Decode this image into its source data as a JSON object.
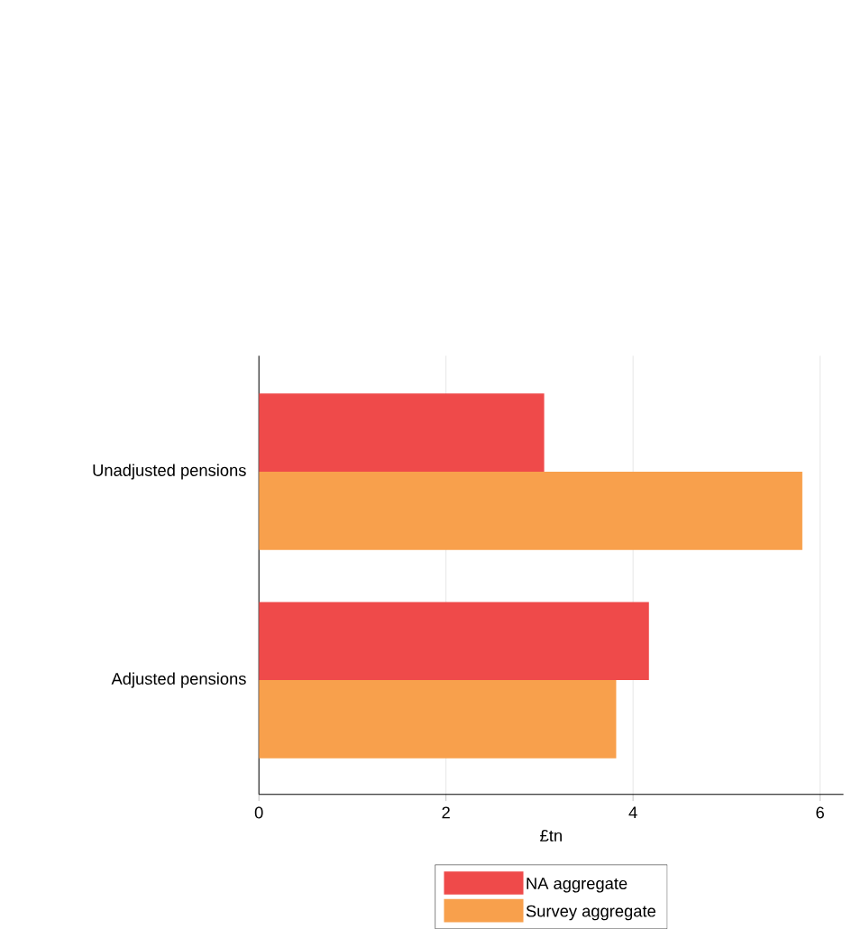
{
  "chart_data": {
    "type": "bar",
    "orientation": "horizontal",
    "xlabel": "£tn",
    "categories": [
      "Unadjusted pensions",
      "Adjusted pensions"
    ],
    "series": [
      {
        "name": "NA aggregate",
        "color": "#ef4a4a",
        "values": [
          3.05,
          4.17
        ]
      },
      {
        "name": "Survey aggregate",
        "color": "#f8a04c",
        "values": [
          5.81,
          3.82
        ]
      }
    ],
    "xlim": [
      0,
      6.25
    ],
    "xticks": [
      0,
      2,
      4,
      6
    ],
    "grid": "x",
    "legend": "bottom"
  }
}
